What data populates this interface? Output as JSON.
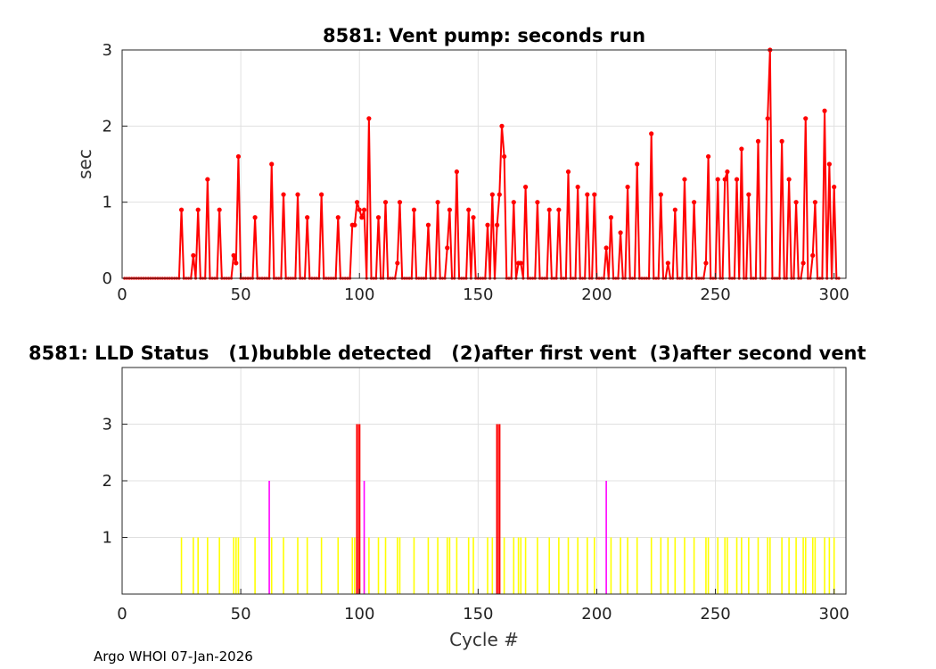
{
  "footer": "Argo WHOI 07-Jan-2026",
  "colors": {
    "pump": "#ff0000",
    "status1": "#ffff00",
    "status2": "#ff00ff",
    "status3": "#ff0000",
    "grid": "#e0e0e0",
    "axes": "#262626"
  },
  "chart_data": [
    {
      "type": "line",
      "title": "8581: Vent pump: seconds run",
      "xlabel": "",
      "ylabel": "sec",
      "xlim": [
        0,
        305
      ],
      "ylim": [
        0,
        3
      ],
      "xticks": [
        0,
        50,
        100,
        150,
        200,
        250,
        300
      ],
      "yticks": [
        0,
        1,
        2,
        3
      ],
      "grid": true,
      "series": [
        {
          "color": "#ff0000",
          "marker": "dot",
          "points": [
            [
              25,
              0.9
            ],
            [
              30,
              0.3
            ],
            [
              32,
              0.9
            ],
            [
              36,
              1.3
            ],
            [
              41,
              0.9
            ],
            [
              47,
              0.3
            ],
            [
              48,
              0.2
            ],
            [
              49,
              1.6
            ],
            [
              56,
              0.8
            ],
            [
              63,
              1.5
            ],
            [
              68,
              1.1
            ],
            [
              74,
              1.1
            ],
            [
              78,
              0.8
            ],
            [
              84,
              1.1
            ],
            [
              91,
              0.8
            ],
            [
              97,
              0.7
            ],
            [
              98,
              0.7
            ],
            [
              99,
              1.0
            ],
            [
              100,
              0.9
            ],
            [
              101,
              0.8
            ],
            [
              102,
              0.9
            ],
            [
              104,
              2.1
            ],
            [
              108,
              0.8
            ],
            [
              111,
              1.0
            ],
            [
              116,
              0.2
            ],
            [
              117,
              1.0
            ],
            [
              123,
              0.9
            ],
            [
              129,
              0.7
            ],
            [
              133,
              1.0
            ],
            [
              137,
              0.4
            ],
            [
              138,
              0.9
            ],
            [
              141,
              1.4
            ],
            [
              146,
              0.9
            ],
            [
              148,
              0.8
            ],
            [
              154,
              0.7
            ],
            [
              156,
              1.1
            ],
            [
              158,
              0.7
            ],
            [
              159,
              1.1
            ],
            [
              160,
              2.0
            ],
            [
              161,
              1.6
            ],
            [
              165,
              1.0
            ],
            [
              167,
              0.2
            ],
            [
              168,
              0.2
            ],
            [
              170,
              1.2
            ],
            [
              175,
              1.0
            ],
            [
              180,
              0.9
            ],
            [
              184,
              0.9
            ],
            [
              188,
              1.4
            ],
            [
              192,
              1.2
            ],
            [
              196,
              1.1
            ],
            [
              199,
              1.1
            ],
            [
              204,
              0.4
            ],
            [
              206,
              0.8
            ],
            [
              210,
              0.6
            ],
            [
              213,
              1.2
            ],
            [
              217,
              1.5
            ],
            [
              223,
              1.9
            ],
            [
              227,
              1.1
            ],
            [
              230,
              0.2
            ],
            [
              233,
              0.9
            ],
            [
              237,
              1.3
            ],
            [
              241,
              1.0
            ],
            [
              246,
              0.2
            ],
            [
              247,
              1.6
            ],
            [
              251,
              1.3
            ],
            [
              254,
              1.3
            ],
            [
              255,
              1.4
            ],
            [
              259,
              1.3
            ],
            [
              261,
              1.7
            ],
            [
              264,
              1.1
            ],
            [
              268,
              1.8
            ],
            [
              272,
              2.1
            ],
            [
              273,
              3.0
            ],
            [
              278,
              1.8
            ],
            [
              281,
              1.3
            ],
            [
              284,
              1.0
            ],
            [
              287,
              0.2
            ],
            [
              288,
              2.1
            ],
            [
              291,
              0.3
            ],
            [
              292,
              1.0
            ],
            [
              296,
              2.2
            ],
            [
              298,
              1.5
            ],
            [
              300,
              1.2
            ]
          ]
        }
      ]
    },
    {
      "type": "bar",
      "title": "8581: LLD Status   (1)bubble detected   (2)after first vent  (3)after second vent",
      "xlabel": "Cycle #",
      "ylabel": "",
      "xlim": [
        0,
        305
      ],
      "ylim": [
        0,
        4
      ],
      "xticks": [
        0,
        50,
        100,
        150,
        200,
        250,
        300
      ],
      "yticks": [
        1,
        2,
        3
      ],
      "grid": true,
      "series": [
        {
          "status": 1,
          "color": "#ffff00",
          "x": [
            25,
            30,
            32,
            36,
            41,
            47,
            48,
            49,
            56,
            63,
            68,
            74,
            78,
            84,
            91,
            97,
            98,
            102,
            104,
            108,
            111,
            116,
            117,
            123,
            129,
            133,
            137,
            138,
            141,
            146,
            148,
            154,
            156,
            161,
            165,
            167,
            168,
            170,
            175,
            180,
            184,
            188,
            192,
            196,
            199,
            206,
            210,
            213,
            217,
            223,
            227,
            230,
            233,
            237,
            241,
            246,
            247,
            251,
            254,
            255,
            259,
            261,
            264,
            268,
            272,
            273,
            278,
            281,
            284,
            287,
            288,
            291,
            292,
            296,
            298,
            300
          ]
        },
        {
          "status": 2,
          "color": "#ff00ff",
          "x": [
            62,
            102,
            204
          ]
        },
        {
          "status": 3,
          "color": "#ff0000",
          "x": [
            99,
            100,
            158,
            159
          ]
        }
      ]
    }
  ]
}
